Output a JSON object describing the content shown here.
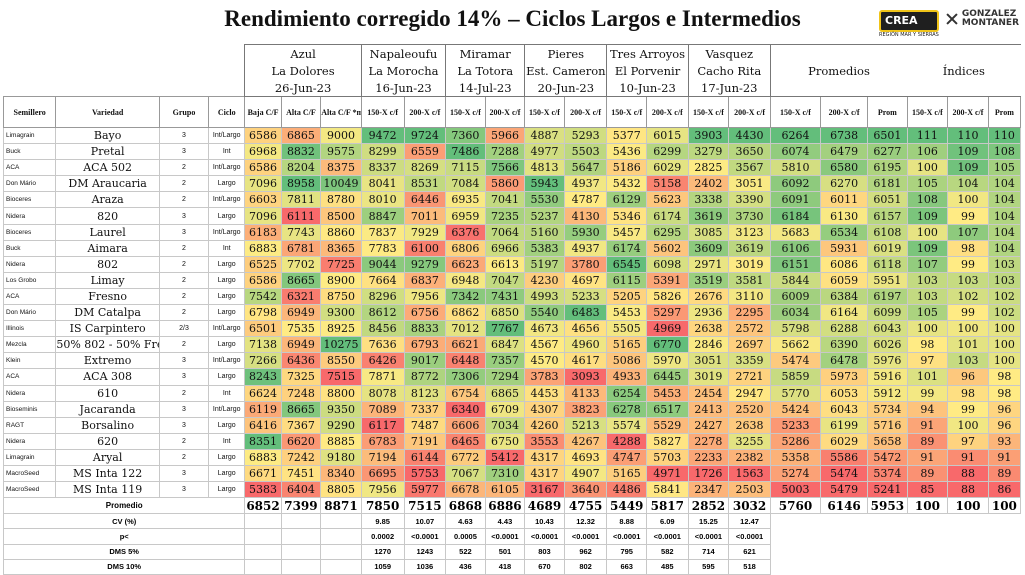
{
  "title": "Rendimiento corregido 14% – Ciclos Largos e Intermedios",
  "logo_crea": "CREA",
  "logo_crea_sub": "REGIÓN MAR Y SIERRAS",
  "logo_gm": [
    "GONZALEZ",
    "MONTANER"
  ],
  "locations": [
    {
      "name": "Azul",
      "site": "La Dolores",
      "date": "26-Jun-23",
      "span": 3
    },
    {
      "name": "Napaleoufu",
      "site": "La Morocha",
      "date": "16-Jun-23",
      "span": 2
    },
    {
      "name": "Miramar",
      "site": "La Totora",
      "date": "14-Jul-23",
      "span": 2
    },
    {
      "name": "Pieres",
      "site": "Est. Cameron",
      "date": "20-Jun-23",
      "span": 2
    },
    {
      "name": "Tres Arroyos",
      "site": "El Porvenir",
      "date": "10-Jun-23",
      "span": 2
    },
    {
      "name": "Vasquez",
      "site": "Cacho Rita",
      "date": "17-Jun-23",
      "span": 2
    }
  ],
  "group_labels": {
    "promedios": "Promedios",
    "indices": "Índices"
  },
  "headers": [
    "Semillero",
    "Variedad",
    "Grupo",
    "Ciclo",
    "Baja C/F",
    "Alta C/F",
    "Alta C/F *manual*",
    "150-X c/f",
    "200-X c/f",
    "150-X c/f",
    "200-X c/f",
    "150-X c/f",
    "200-X c/f",
    "150-X c/f",
    "200-X c/f",
    "150-X c/f",
    "200-X c/f",
    "150-X c/f",
    "200-X c/f",
    "Prom",
    "150-X c/f",
    "200-X c/f",
    "Prom"
  ],
  "rows": [
    [
      "Limagrain",
      "Bayo",
      "3",
      "Int/Largo",
      6586,
      6865,
      9000,
      9472,
      9724,
      7360,
      5966,
      4887,
      5293,
      5377,
      6015,
      3903,
      4430,
      6264,
      6738,
      6501,
      111,
      110,
      110
    ],
    [
      "Buck",
      "Pretal",
      "3",
      "Int",
      6968,
      8832,
      9575,
      8299,
      6559,
      7486,
      7288,
      4977,
      5503,
      5436,
      6299,
      3279,
      3650,
      6074,
      6479,
      6277,
      106,
      109,
      108
    ],
    [
      "ACA",
      "ACA 502",
      "2",
      "Int/Largo",
      6586,
      8204,
      8375,
      8337,
      8269,
      7115,
      7566,
      4813,
      5647,
      5186,
      6029,
      2825,
      3567,
      5810,
      6580,
      6195,
      100,
      109,
      105
    ],
    [
      "Don Mário",
      "DM Araucaria",
      "2",
      "Largo",
      7096,
      8958,
      10049,
      8041,
      8531,
      7084,
      5860,
      5943,
      4937,
      5432,
      5158,
      2402,
      3051,
      6092,
      6270,
      6181,
      105,
      104,
      104
    ],
    [
      "Bioceres",
      "Araza",
      "2",
      "Int/Largo",
      6603,
      7811,
      8780,
      8010,
      6446,
      6935,
      7041,
      5530,
      4787,
      6129,
      5623,
      3338,
      3390,
      6091,
      6011,
      6051,
      108,
      100,
      104
    ],
    [
      "Nidera",
      "820",
      "3",
      "Largo",
      7096,
      6111,
      8500,
      8847,
      7011,
      6959,
      7235,
      5237,
      4130,
      5346,
      6174,
      3619,
      3730,
      6184,
      6130,
      6157,
      109,
      99,
      104
    ],
    [
      "Bioceres",
      "Laurel",
      "3",
      "Int/Largo",
      6183,
      7743,
      8860,
      7837,
      7929,
      6376,
      7064,
      5160,
      5930,
      5457,
      6295,
      3085,
      3123,
      5683,
      6534,
      6108,
      100,
      107,
      104
    ],
    [
      "Buck",
      "Aimara",
      "2",
      "Int",
      6883,
      6781,
      8365,
      7783,
      6100,
      6806,
      6966,
      5383,
      4937,
      6174,
      5602,
      3609,
      3619,
      6106,
      5931,
      6019,
      109,
      98,
      104
    ],
    [
      "Nidera",
      "802",
      "2",
      "Largo",
      6525,
      7702,
      7725,
      9044,
      9279,
      6623,
      6613,
      5197,
      3780,
      6545,
      6098,
      2971,
      3019,
      6151,
      6086,
      6118,
      107,
      99,
      103
    ],
    [
      "Los Grobo",
      "Limay",
      "2",
      "Largo",
      6586,
      8665,
      8900,
      7664,
      6837,
      6948,
      7047,
      4230,
      4697,
      6115,
      5391,
      3519,
      3581,
      5844,
      6059,
      5951,
      103,
      103,
      103
    ],
    [
      "ACA",
      "Fresno",
      "2",
      "Largo",
      7542,
      6321,
      8750,
      8296,
      7956,
      7342,
      7431,
      4993,
      5233,
      5205,
      5826,
      2676,
      3110,
      6009,
      6384,
      6197,
      103,
      102,
      102
    ],
    [
      "Don Mário",
      "DM Catalpa",
      "2",
      "Largo",
      6798,
      6949,
      9300,
      8612,
      6756,
      6862,
      6850,
      5540,
      6483,
      5453,
      5297,
      2936,
      2295,
      6034,
      6164,
      6099,
      105,
      99,
      102
    ],
    [
      "Illinois",
      "IS Carpintero",
      "2/3",
      "Int/Largo",
      6501,
      7535,
      8925,
      8456,
      8833,
      7012,
      7767,
      4673,
      4656,
      5505,
      4969,
      2638,
      2572,
      5798,
      6288,
      6043,
      100,
      100,
      100
    ],
    [
      "Mezcla",
      "50% 802 - 50% Fresno",
      "2",
      "Largo",
      7138,
      6949,
      10275,
      7636,
      6793,
      6621,
      6847,
      4567,
      4960,
      5165,
      6770,
      2846,
      2697,
      5662,
      6390,
      6026,
      98,
      101,
      100
    ],
    [
      "Klein",
      "Extremo",
      "3",
      "Int/Largo",
      7266,
      6436,
      8550,
      6426,
      9017,
      6448,
      7357,
      4570,
      4617,
      5086,
      5970,
      3051,
      3359,
      5474,
      6478,
      5976,
      97,
      103,
      100
    ],
    [
      "ACA",
      "ACA 308",
      "3",
      "Largo",
      8243,
      7325,
      7515,
      7871,
      8772,
      7306,
      7294,
      3783,
      3093,
      4933,
      6445,
      3019,
      2721,
      5859,
      5973,
      5916,
      101,
      96,
      98
    ],
    [
      "Nidera",
      "610",
      "2",
      "Int",
      6624,
      7248,
      8800,
      8078,
      8123,
      6754,
      6865,
      4453,
      4133,
      6254,
      5453,
      2454,
      2947,
      5770,
      6053,
      5912,
      99,
      98,
      98
    ],
    [
      "Bioseminis",
      "Jacaranda",
      "3",
      "Int/Largo",
      6119,
      8665,
      9350,
      7089,
      7337,
      6340,
      6709,
      4307,
      3823,
      6278,
      6517,
      2413,
      2520,
      5424,
      6043,
      5734,
      94,
      99,
      96
    ],
    [
      "RAGT",
      "Borsalino",
      "3",
      "Largo",
      6416,
      7367,
      9290,
      6117,
      7487,
      6606,
      7034,
      4260,
      5213,
      5574,
      5529,
      2427,
      2638,
      5233,
      6199,
      5716,
      91,
      100,
      96
    ],
    [
      "Nidera",
      "620",
      "2",
      "Int",
      8351,
      6620,
      8885,
      6783,
      7191,
      6465,
      6750,
      3553,
      4267,
      4288,
      5827,
      2278,
      3255,
      5286,
      6029,
      5658,
      89,
      97,
      93
    ],
    [
      "Limagrain",
      "Aryal",
      "2",
      "Largo",
      6883,
      7242,
      9180,
      7194,
      6144,
      6772,
      5412,
      4317,
      4693,
      4747,
      5703,
      2233,
      2382,
      5358,
      5586,
      5472,
      91,
      91,
      91
    ],
    [
      "MacroSeed",
      "MS Inta 122",
      "3",
      "Largo",
      6671,
      7451,
      8340,
      6695,
      5753,
      7067,
      7310,
      4317,
      4907,
      5165,
      4971,
      1726,
      1563,
      5274,
      5474,
      5374,
      89,
      88,
      89
    ],
    [
      "MacroSeed",
      "MS Inta 119",
      "3",
      "Largo",
      5383,
      6404,
      8805,
      7956,
      5977,
      6678,
      6105,
      3167,
      3640,
      4486,
      5841,
      2347,
      2503,
      5003,
      5479,
      5241,
      85,
      88,
      86
    ]
  ],
  "promedio": {
    "label": "Promedio",
    "values": [
      6852,
      7399,
      8871,
      7850,
      7515,
      6868,
      6886,
      4689,
      4755,
      5449,
      5817,
      2852,
      3032,
      5760,
      6146,
      5953,
      100,
      100,
      100
    ]
  },
  "stats": [
    {
      "label": "CV (%)",
      "values": [
        "",
        "",
        "",
        "9.85",
        "10.07",
        "4.63",
        "4.43",
        "10.43",
        "12.32",
        "8.88",
        "6.09",
        "15.25",
        "12.47"
      ]
    },
    {
      "label": "p<",
      "values": [
        "",
        "",
        "",
        "0.0002",
        "<0.0001",
        "0.0005",
        "<0.0001",
        "<0.0001",
        "<0.0001",
        "<0.0001",
        "<0.0001",
        "<0.0001",
        "<0.0001"
      ]
    },
    {
      "label": "DMS 5%",
      "values": [
        "",
        "",
        "",
        "1270",
        "1243",
        "522",
        "501",
        "803",
        "962",
        "795",
        "582",
        "714",
        "621"
      ]
    },
    {
      "label": "DMS 10%",
      "values": [
        "",
        "",
        "",
        "1059",
        "1036",
        "436",
        "418",
        "670",
        "802",
        "663",
        "485",
        "595",
        "518"
      ]
    }
  ]
}
